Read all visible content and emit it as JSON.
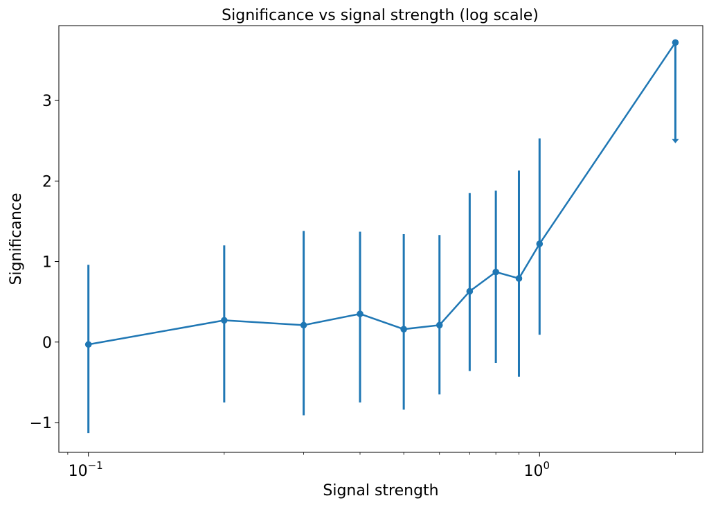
{
  "chart_data": {
    "type": "line",
    "title": "Significance vs signal strength (log scale)",
    "xlabel": "Signal strength",
    "ylabel": "Significance",
    "xscale": "log",
    "xlim": [
      0.086,
      2.3
    ],
    "ylim": [
      -1.37,
      3.93
    ],
    "x_ticks": [
      {
        "value": 0.1,
        "base": "10",
        "exp": "−1"
      },
      {
        "value": 1.0,
        "base": "10",
        "exp": "0"
      }
    ],
    "y_ticks": [
      {
        "value": -1,
        "label": "−1"
      },
      {
        "value": 0,
        "label": "0"
      },
      {
        "value": 1,
        "label": "1"
      },
      {
        "value": 2,
        "label": "2"
      },
      {
        "value": 3,
        "label": "3"
      }
    ],
    "grid": false,
    "color": "#1f77b4",
    "series": [
      {
        "name": "significance",
        "x": [
          0.1,
          0.2,
          0.3,
          0.4,
          0.5,
          0.6,
          0.7,
          0.8,
          0.9,
          1.0,
          2.0
        ],
        "y": [
          -0.03,
          0.27,
          0.21,
          0.35,
          0.16,
          0.21,
          0.63,
          0.87,
          0.79,
          1.22,
          3.72
        ],
        "y_low": [
          -1.13,
          -0.75,
          -0.91,
          -0.75,
          -0.84,
          -0.65,
          -0.36,
          -0.26,
          -0.43,
          0.09,
          null
        ],
        "y_high": [
          0.96,
          1.2,
          1.38,
          1.37,
          1.34,
          1.33,
          1.85,
          1.88,
          2.13,
          2.53,
          null
        ],
        "upper_limit": [
          false,
          false,
          false,
          false,
          false,
          false,
          false,
          false,
          false,
          false,
          true
        ],
        "upper_limit_to": [
          null,
          null,
          null,
          null,
          null,
          null,
          null,
          null,
          null,
          null,
          2.47
        ]
      }
    ]
  }
}
